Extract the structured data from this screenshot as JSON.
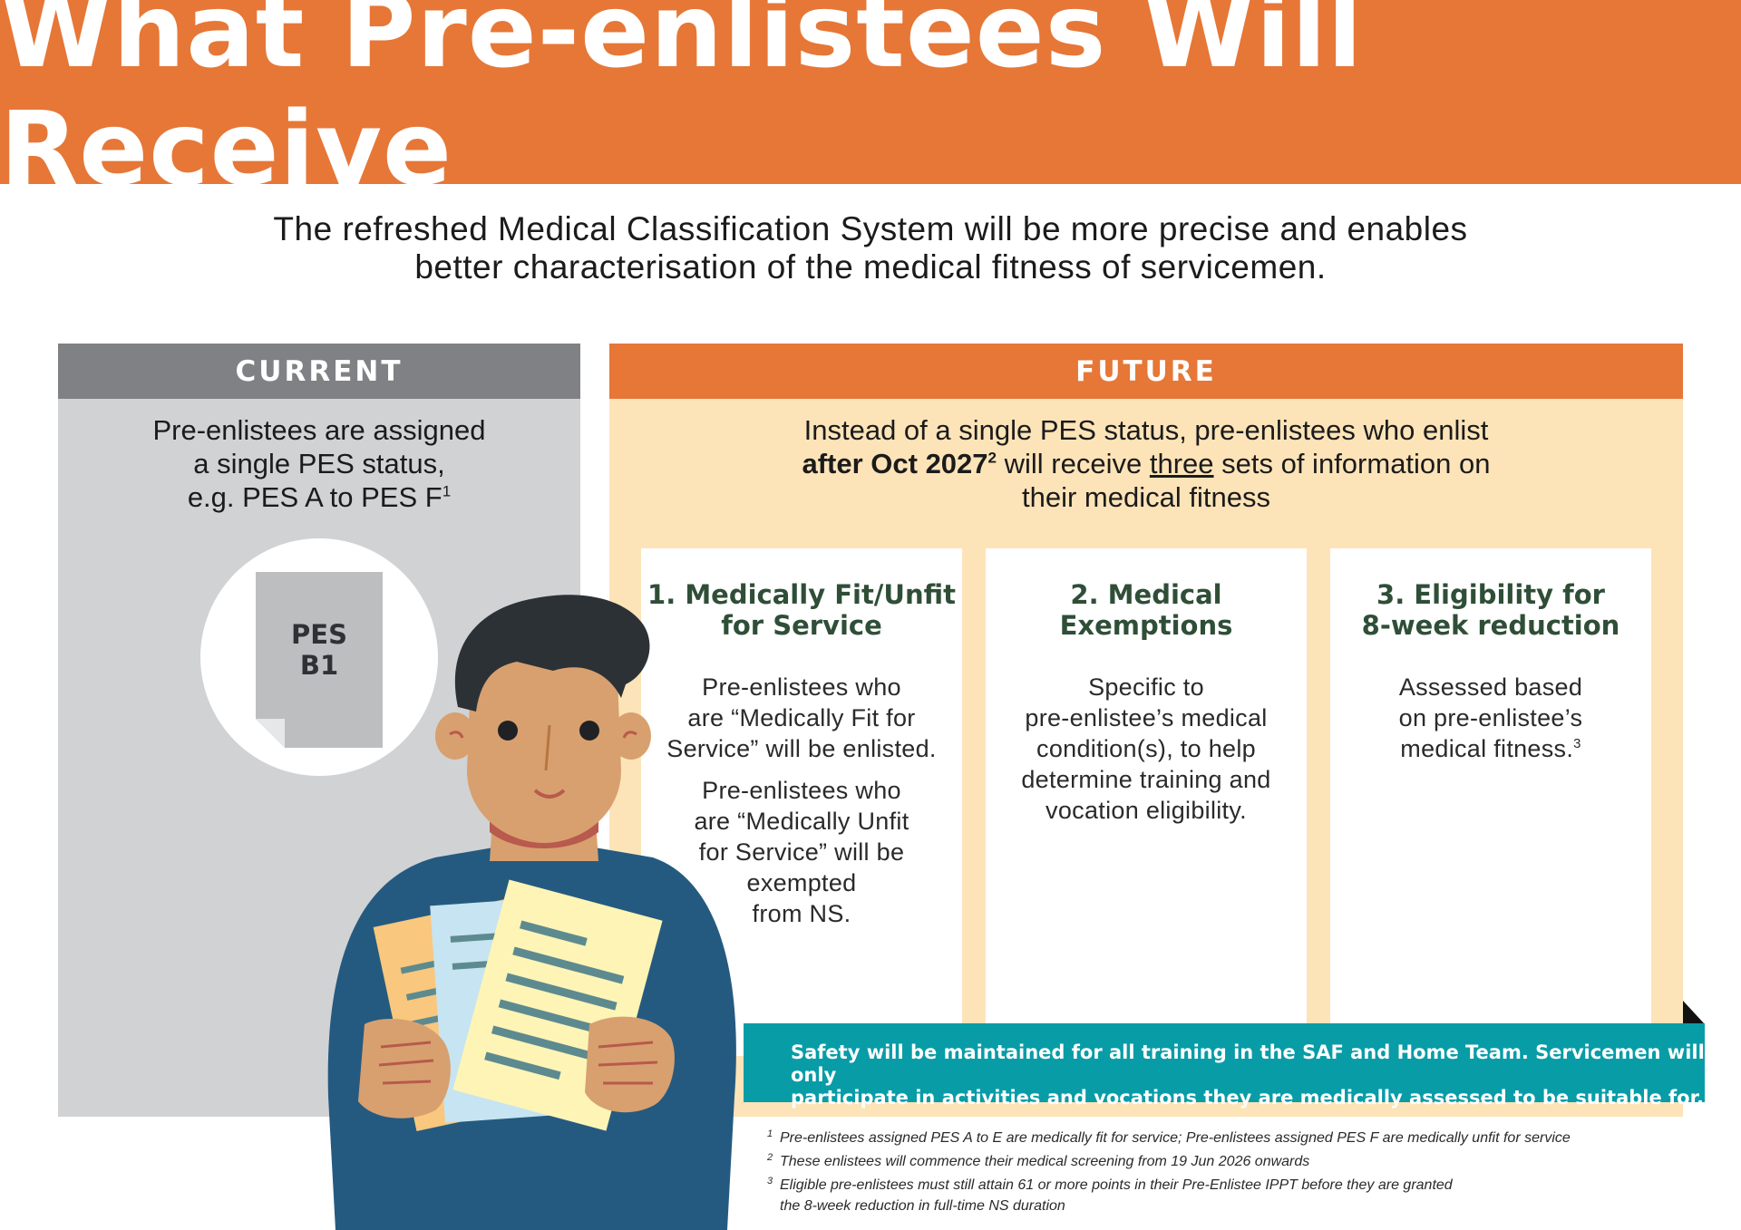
{
  "banner": {
    "title": "What Pre-enlistees Will Receive"
  },
  "subtitle": [
    "The refreshed Medical Classification System will be more precise and enables",
    "better characterisation of the medical fitness of servicemen."
  ],
  "current": {
    "header": "CURRENT",
    "lines": [
      "Pre-enlistees are assigned",
      "a single PES status,",
      "e.g. PES A to PES F"
    ],
    "footnote_mark": "1",
    "doc_label": [
      "PES",
      "B1"
    ]
  },
  "future": {
    "header": "FUTURE",
    "line1": "Instead of a single PES status, pre-enlistees who enlist",
    "bold": "after Oct 2027",
    "footnote_mark": "2",
    "line2_mid": " will receive ",
    "underlined": "three",
    "line2_end": " sets of information on",
    "line3": "their medical fitness",
    "cards": [
      {
        "title": [
          "1. Medically Fit/Unfit",
          "for Service"
        ],
        "para1": [
          "Pre-enlistees who",
          "are “Medically Fit for",
          "Service” will be enlisted."
        ],
        "para2": [
          "Pre-enlistees who",
          "are “Medically Unfit",
          "for Service” will be",
          "exempted",
          "from NS."
        ]
      },
      {
        "title": [
          "2. Medical",
          "Exemptions"
        ],
        "para1": [
          "Specific to",
          "pre-enlistee’s medical",
          "condition(s), to help",
          "determine training and",
          "vocation eligibility."
        ]
      },
      {
        "title": [
          "3. Eligibility for",
          "8-week reduction"
        ],
        "para1": [
          "Assessed based",
          "on pre-enlistee’s",
          "medical fitness."
        ],
        "footnote_mark": "3"
      }
    ]
  },
  "safety": [
    "Safety will be maintained for all training in the SAF and Home Team. Servicemen will only",
    "participate in activities and vocations they are medically assessed to be suitable for."
  ],
  "footnotes": [
    {
      "n": "1",
      "lines": [
        "Pre-enlistees assigned PES A to E are medically fit for service; Pre-enlistees assigned PES F are medically unfit for service"
      ]
    },
    {
      "n": "2",
      "lines": [
        "These enlistees will commence their medical screening from 19 Jun 2026 onwards"
      ]
    },
    {
      "n": "3",
      "lines": [
        "Eligible pre-enlistees must still attain 61 or more points in their Pre-Enlistee IPPT before they are granted",
        "the 8-week reduction in full-time NS duration"
      ]
    }
  ],
  "colors": {
    "orange": "#e67737",
    "grey_header": "#808184",
    "grey_panel": "#d1d2d4",
    "cream": "#fde4b8",
    "teal": "#089ca7",
    "card_title": "#2f4e37"
  }
}
